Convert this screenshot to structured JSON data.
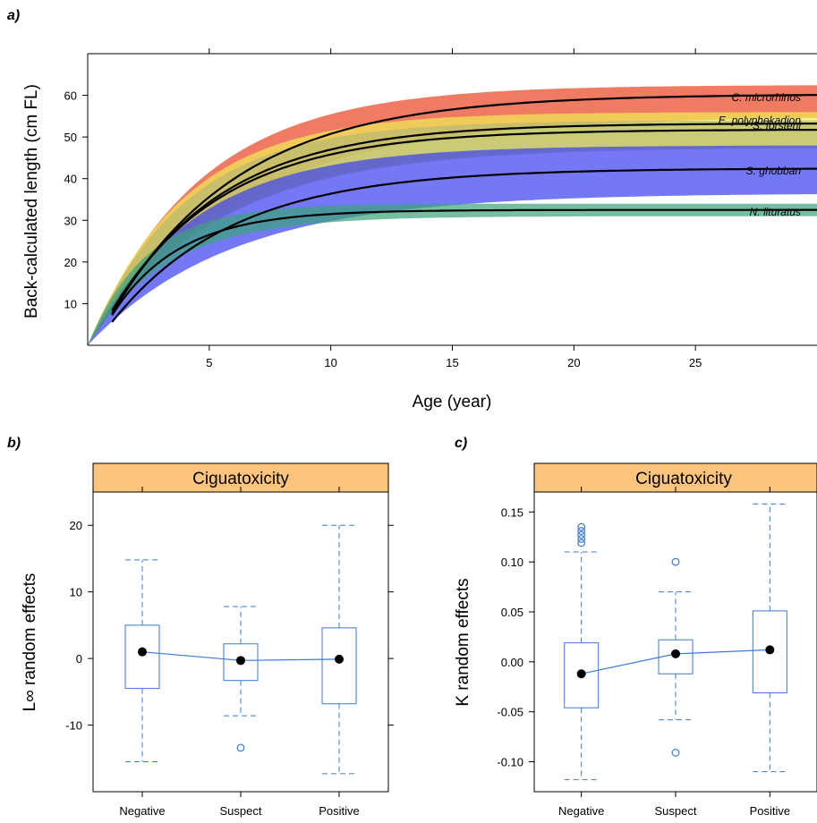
{
  "panels": {
    "a": {
      "letter": "a)"
    },
    "b": {
      "letter": "b)"
    },
    "c": {
      "letter": "c)"
    }
  },
  "chart_data": [
    {
      "type": "line",
      "panel": "a",
      "xlabel": "Age (year)",
      "ylabel": "Back-calculated length (cm FL)",
      "xlim": [
        0,
        30
      ],
      "ylim": [
        0,
        70
      ],
      "xticks": [
        5,
        10,
        15,
        20,
        25
      ],
      "yticks": [
        10,
        20,
        30,
        40,
        50,
        60
      ],
      "series": [
        {
          "name": "C. microrhinos",
          "color": "#e8431f",
          "linf": 60.3,
          "k": 0.19,
          "t0": 0.3,
          "band_low": 55,
          "band_high": 62.5,
          "x_start": 1,
          "x_end": 30
        },
        {
          "name": "S. forsteni",
          "color": "#f2ee55",
          "linf": 53.3,
          "k": 0.22,
          "t0": 0.3,
          "band_low": 48,
          "band_high": 56,
          "x_start": 1,
          "x_end": 30
        },
        {
          "name": "E. polyphekadion",
          "color": "#b8b870",
          "linf": 51.8,
          "k": 0.22,
          "t0": 0.2,
          "band_low": 47.5,
          "band_high": 54,
          "x_start": 1,
          "x_end": 30
        },
        {
          "name": "S. ghobban",
          "color": "#3a3ff0",
          "linf": 42.5,
          "k": 0.2,
          "t0": 0.3,
          "band_low": 36.5,
          "band_high": 48,
          "x_start": 1,
          "x_end": 30
        },
        {
          "name": "N. lituratus",
          "color": "#3aa37a",
          "linf": 32.5,
          "k": 0.36,
          "t0": 0.3,
          "band_low": 31,
          "band_high": 34,
          "x_start": 1,
          "x_end": 30
        }
      ]
    },
    {
      "type": "box",
      "panel": "b",
      "strip_label": "Ciguatoxicity",
      "ylabel": "L∞ random effects",
      "categories": [
        "Negative",
        "Suspect",
        "Positive"
      ],
      "ylim": [
        -20,
        25
      ],
      "yticks": [
        -10,
        0,
        10,
        20
      ],
      "boxes": [
        {
          "q1": -4.5,
          "median": 1.0,
          "q3": 5.0,
          "whisker_low": -15.5,
          "whisker_high": 14.8,
          "outliers": []
        },
        {
          "q1": -3.3,
          "median": -0.3,
          "q3": 2.2,
          "whisker_low": -8.6,
          "whisker_high": 7.8,
          "outliers": [
            -13.4
          ]
        },
        {
          "q1": -6.8,
          "median": 0.0,
          "q3": 4.6,
          "whisker_low": -17.3,
          "whisker_high": 20.0,
          "outliers": []
        }
      ],
      "means": [
        1.0,
        -0.3,
        -0.1
      ]
    },
    {
      "type": "box",
      "panel": "c",
      "strip_label": "Ciguatoxicity",
      "ylabel": "K random effects",
      "categories": [
        "Negative",
        "Suspect",
        "Positive"
      ],
      "ylim": [
        -0.13,
        0.17
      ],
      "yticks": [
        -0.1,
        -0.05,
        0.0,
        0.05,
        0.1,
        0.15
      ],
      "ytick_labels": [
        "-0.10",
        "-0.05",
        "0.00",
        "0.05",
        "0.10",
        "0.15"
      ],
      "boxes": [
        {
          "q1": -0.046,
          "median": -0.012,
          "q3": 0.019,
          "whisker_low": -0.118,
          "whisker_high": 0.11,
          "outliers": [
            0.119,
            0.123,
            0.127,
            0.131,
            0.135
          ]
        },
        {
          "q1": -0.012,
          "median": 0.008,
          "q3": 0.022,
          "whisker_low": -0.058,
          "whisker_high": 0.07,
          "outliers": [
            -0.091,
            0.1
          ]
        },
        {
          "q1": -0.031,
          "median": 0.012,
          "q3": 0.051,
          "whisker_low": -0.11,
          "whisker_high": 0.158,
          "outliers": []
        }
      ],
      "means": [
        -0.012,
        0.008,
        0.012
      ]
    }
  ]
}
